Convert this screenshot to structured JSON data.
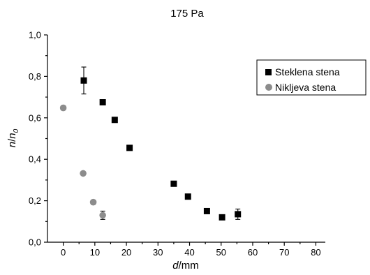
{
  "chart_data": {
    "type": "scatter",
    "title": "175 Pa",
    "xlabel_italic": "d",
    "xlabel_unit": "/mm",
    "ylabel_italic_n": "n",
    "ylabel_slash": "/",
    "ylabel_italic_n0": "n",
    "ylabel_sub": "0",
    "xlim": [
      -5,
      83
    ],
    "ylim": [
      0,
      1.0
    ],
    "x_ticks": [
      0,
      10,
      20,
      30,
      40,
      50,
      60,
      70,
      80
    ],
    "x_tick_labels": [
      "0",
      "10",
      "20",
      "30",
      "40",
      "50",
      "60",
      "70",
      "80"
    ],
    "y_ticks": [
      0,
      0.2,
      0.4,
      0.6,
      0.8,
      1.0
    ],
    "y_tick_labels": [
      "0,0",
      "0,2",
      "0,4",
      "0,6",
      "0,8",
      "1,0"
    ],
    "legend_position": "top-right",
    "series": [
      {
        "name": "Steklena stena",
        "marker": "square",
        "color": "#000000",
        "points": [
          {
            "x": 6.5,
            "y": 0.78,
            "err": 0.065
          },
          {
            "x": 12.5,
            "y": 0.675,
            "err": 0.012
          },
          {
            "x": 16.3,
            "y": 0.59,
            "err": 0.012
          },
          {
            "x": 21.0,
            "y": 0.455,
            "err": 0
          },
          {
            "x": 35.0,
            "y": 0.282,
            "err": 0
          },
          {
            "x": 39.5,
            "y": 0.22,
            "err": 0
          },
          {
            "x": 45.5,
            "y": 0.15,
            "err": 0
          },
          {
            "x": 50.3,
            "y": 0.12,
            "err": 0
          },
          {
            "x": 55.3,
            "y": 0.135,
            "err": 0.025
          }
        ]
      },
      {
        "name": "Nikljeva stena",
        "marker": "circle",
        "color": "#8c8c8c",
        "points": [
          {
            "x": 0.0,
            "y": 0.648,
            "err": 0.01
          },
          {
            "x": 6.3,
            "y": 0.332,
            "err": 0
          },
          {
            "x": 9.5,
            "y": 0.193,
            "err": 0.01
          },
          {
            "x": 12.5,
            "y": 0.13,
            "err": 0.02
          }
        ]
      }
    ]
  }
}
